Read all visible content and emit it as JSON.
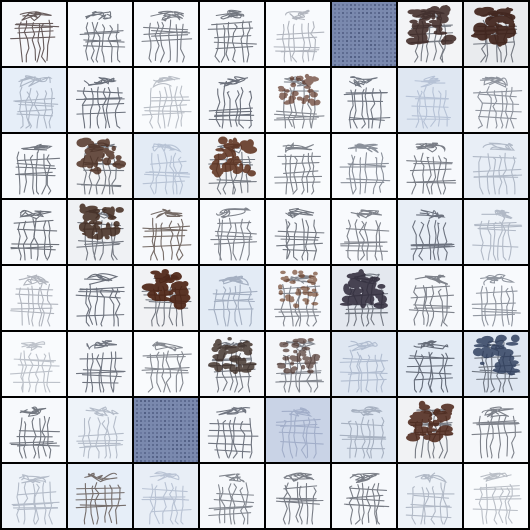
{
  "grid": {
    "rows": 8,
    "cols": 8,
    "separator_color": "#000000",
    "tiles": [
      {
        "bg": "#f6f8fb",
        "style": "sketch",
        "dark": 0.75,
        "color": "#3a2a2a"
      },
      {
        "bg": "#f7f9fc",
        "style": "sketch",
        "dark": 0.55,
        "color": "#2e3440"
      },
      {
        "bg": "#f7f9fc",
        "style": "sketch",
        "dark": 0.5,
        "color": "#2e3440"
      },
      {
        "bg": "#f7f9fc",
        "style": "sketch",
        "dark": 0.55,
        "color": "#2e3440"
      },
      {
        "bg": "#f8fafd",
        "style": "faint",
        "dark": 0.35,
        "color": "#3b4456"
      },
      {
        "bg": "#6f7fa8",
        "style": "noise",
        "dark": 0.6,
        "color": "#34426a"
      },
      {
        "bg": "#f3f4f6",
        "style": "blob",
        "dark": 0.85,
        "color": "#3a2420"
      },
      {
        "bg": "#e9ebee",
        "style": "blob",
        "dark": 1.0,
        "color": "#3d1f16"
      },
      {
        "bg": "#e6eef8",
        "style": "faint",
        "dark": 0.4,
        "color": "#55627a"
      },
      {
        "bg": "#f4f6fa",
        "style": "sketch",
        "dark": 0.6,
        "color": "#2a3140"
      },
      {
        "bg": "#f9fbfd",
        "style": "faint",
        "dark": 0.3,
        "color": "#4a5568"
      },
      {
        "bg": "#f5f7fa",
        "style": "sketch",
        "dark": 0.6,
        "color": "#2a3140"
      },
      {
        "bg": "#f9fbfd",
        "style": "brownfig",
        "dark": 0.7,
        "color": "#5a2f1f"
      },
      {
        "bg": "#f6f8fb",
        "style": "sketch",
        "dark": 0.55,
        "color": "#2a3140"
      },
      {
        "bg": "#dfe7f2",
        "style": "faint",
        "dark": 0.35,
        "color": "#7486a8"
      },
      {
        "bg": "#f5f7fa",
        "style": "sketch",
        "dark": 0.35,
        "color": "#3a4252"
      },
      {
        "bg": "#f7f9fc",
        "style": "sketch",
        "dark": 0.55,
        "color": "#2e3440"
      },
      {
        "bg": "#f3f4f6",
        "style": "blob",
        "dark": 0.75,
        "color": "#4a2a1c"
      },
      {
        "bg": "#e3ebf5",
        "style": "faint",
        "dark": 0.3,
        "color": "#6b7c9c"
      },
      {
        "bg": "#f3f4f6",
        "style": "blob",
        "dark": 0.85,
        "color": "#5a2c18"
      },
      {
        "bg": "#f9fbfd",
        "style": "sketch",
        "dark": 0.45,
        "color": "#2e3440"
      },
      {
        "bg": "#f8fafd",
        "style": "sketch",
        "dark": 0.4,
        "color": "#3a4252"
      },
      {
        "bg": "#f7f9fc",
        "style": "sketch",
        "dark": 0.5,
        "color": "#2e3440"
      },
      {
        "bg": "#e8eef6",
        "style": "faint",
        "dark": 0.35,
        "color": "#55627a"
      },
      {
        "bg": "#f6f8fb",
        "style": "sketch",
        "dark": 0.6,
        "color": "#2e3440"
      },
      {
        "bg": "#eff1f4",
        "style": "blob",
        "dark": 0.8,
        "color": "#3d2418"
      },
      {
        "bg": "#f7f9fc",
        "style": "sketch",
        "dark": 0.6,
        "color": "#3a2a22"
      },
      {
        "bg": "#f8fafd",
        "style": "sketch",
        "dark": 0.45,
        "color": "#2e3440"
      },
      {
        "bg": "#f7f9fc",
        "style": "sketch",
        "dark": 0.55,
        "color": "#2e3440"
      },
      {
        "bg": "#f8fafd",
        "style": "sketch",
        "dark": 0.45,
        "color": "#2e3440"
      },
      {
        "bg": "#e8eef6",
        "style": "sketch",
        "dark": 0.55,
        "color": "#2a3140"
      },
      {
        "bg": "#edf2f8",
        "style": "faint",
        "dark": 0.4,
        "color": "#55627a"
      },
      {
        "bg": "#f8fafd",
        "style": "faint",
        "dark": 0.35,
        "color": "#3b4456"
      },
      {
        "bg": "#f5f7fa",
        "style": "sketch",
        "dark": 0.6,
        "color": "#2a3140"
      },
      {
        "bg": "#f1f2f4",
        "style": "blob",
        "dark": 1.0,
        "color": "#4a2010"
      },
      {
        "bg": "#e3ebf5",
        "style": "faint",
        "dark": 0.45,
        "color": "#4a5a78"
      },
      {
        "bg": "#f7f9fc",
        "style": "brownfig",
        "dark": 0.55,
        "color": "#6a3a20"
      },
      {
        "bg": "#e4e8ef",
        "style": "blob",
        "dark": 0.9,
        "color": "#2f2a3a"
      },
      {
        "bg": "#f6f8fb",
        "style": "sketch",
        "dark": 0.45,
        "color": "#2e3440"
      },
      {
        "bg": "#f8fafd",
        "style": "sketch",
        "dark": 0.35,
        "color": "#3a4252"
      },
      {
        "bg": "#f9fbfd",
        "style": "faint",
        "dark": 0.25,
        "color": "#4a5568"
      },
      {
        "bg": "#f5f7fa",
        "style": "sketch",
        "dark": 0.55,
        "color": "#2a3140"
      },
      {
        "bg": "#f9fbfd",
        "style": "sketch",
        "dark": 0.4,
        "color": "#2e3440"
      },
      {
        "bg": "#f4f6f9",
        "style": "blob",
        "dark": 0.7,
        "color": "#3a2a22"
      },
      {
        "bg": "#f4f6f9",
        "style": "brownfig",
        "dark": 0.75,
        "color": "#4a3028"
      },
      {
        "bg": "#dfe7f2",
        "style": "faint",
        "dark": 0.4,
        "color": "#6b7c9c"
      },
      {
        "bg": "#e3ebf5",
        "style": "sketch",
        "dark": 0.6,
        "color": "#2a3140"
      },
      {
        "bg": "#dfe7f2",
        "style": "blob",
        "dark": 0.75,
        "color": "#2a3a5a"
      },
      {
        "bg": "#f7f9fc",
        "style": "sketch",
        "dark": 0.55,
        "color": "#2e3440"
      },
      {
        "bg": "#eef3f9",
        "style": "faint",
        "dark": 0.35,
        "color": "#55627a"
      },
      {
        "bg": "#6f7fa8",
        "style": "noise",
        "dark": 0.6,
        "color": "#34426a"
      },
      {
        "bg": "#f5f7fa",
        "style": "sketch",
        "dark": 0.55,
        "color": "#2a3140"
      },
      {
        "bg": "#c9d3e6",
        "style": "faint",
        "dark": 0.45,
        "color": "#6a7aa0"
      },
      {
        "bg": "#dfe7f2",
        "style": "faint",
        "dark": 0.45,
        "color": "#55627a"
      },
      {
        "bg": "#f1f2f4",
        "style": "blob",
        "dark": 0.85,
        "color": "#4a2214"
      },
      {
        "bg": "#f6f8fb",
        "style": "sketch",
        "dark": 0.45,
        "color": "#2e3440"
      },
      {
        "bg": "#eef3f9",
        "style": "faint",
        "dark": 0.35,
        "color": "#55627a"
      },
      {
        "bg": "#e6eef8",
        "style": "sketch",
        "dark": 0.55,
        "color": "#3a2a22"
      },
      {
        "bg": "#e8eef6",
        "style": "faint",
        "dark": 0.35,
        "color": "#6b7c9c"
      },
      {
        "bg": "#f6f8fb",
        "style": "sketch",
        "dark": 0.4,
        "color": "#2e3440"
      },
      {
        "bg": "#f6f8fb",
        "style": "sketch",
        "dark": 0.5,
        "color": "#2e3440"
      },
      {
        "bg": "#f7f9fc",
        "style": "sketch",
        "dark": 0.5,
        "color": "#2e3440"
      },
      {
        "bg": "#edf2f8",
        "style": "faint",
        "dark": 0.4,
        "color": "#55627a"
      },
      {
        "bg": "#f9fbfd",
        "style": "faint",
        "dark": 0.3,
        "color": "#4a5568"
      }
    ]
  }
}
